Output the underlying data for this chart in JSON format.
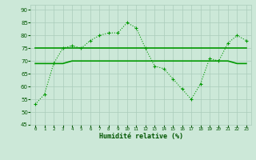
{
  "title": "",
  "xlabel": "Humidité relative (%)",
  "ylabel": "",
  "background_color": "#cce8d8",
  "grid_color": "#aaccbb",
  "line_color": "#009900",
  "xlim": [
    -0.5,
    23.5
  ],
  "ylim": [
    45,
    92
  ],
  "yticks": [
    45,
    50,
    55,
    60,
    65,
    70,
    75,
    80,
    85,
    90
  ],
  "xticks": [
    0,
    1,
    2,
    3,
    4,
    5,
    6,
    7,
    8,
    9,
    10,
    11,
    12,
    13,
    14,
    15,
    16,
    17,
    18,
    19,
    20,
    21,
    22,
    23
  ],
  "series1_x": [
    0,
    1,
    2,
    3,
    4,
    5,
    6,
    7,
    8,
    9,
    10,
    11,
    12,
    13,
    14,
    15,
    16,
    17,
    18,
    19,
    20,
    21,
    22,
    23
  ],
  "series1_y": [
    53,
    57,
    69,
    75,
    76,
    75,
    78,
    80,
    81,
    81,
    85,
    83,
    75,
    68,
    67,
    63,
    59,
    55,
    61,
    71,
    70,
    77,
    80,
    78
  ],
  "series2_x": [
    0,
    1,
    2,
    3,
    4,
    5,
    6,
    7,
    8,
    9,
    10,
    11,
    12,
    13,
    14,
    15,
    16,
    17,
    18,
    19,
    20,
    21,
    22,
    23
  ],
  "series2_y": [
    69,
    69,
    69,
    69,
    70,
    70,
    70,
    70,
    70,
    70,
    70,
    70,
    70,
    70,
    70,
    70,
    70,
    70,
    70,
    70,
    70,
    70,
    69,
    69
  ],
  "series3_x": [
    0,
    1,
    2,
    3,
    4,
    5,
    6,
    7,
    8,
    9,
    10,
    11,
    12,
    13,
    14,
    15,
    16,
    17,
    18,
    19,
    20,
    21,
    22,
    23
  ],
  "series3_y": [
    75,
    75,
    75,
    75,
    75,
    75,
    75,
    75,
    75,
    75,
    75,
    75,
    75,
    75,
    75,
    75,
    75,
    75,
    75,
    75,
    75,
    75,
    75,
    75
  ]
}
